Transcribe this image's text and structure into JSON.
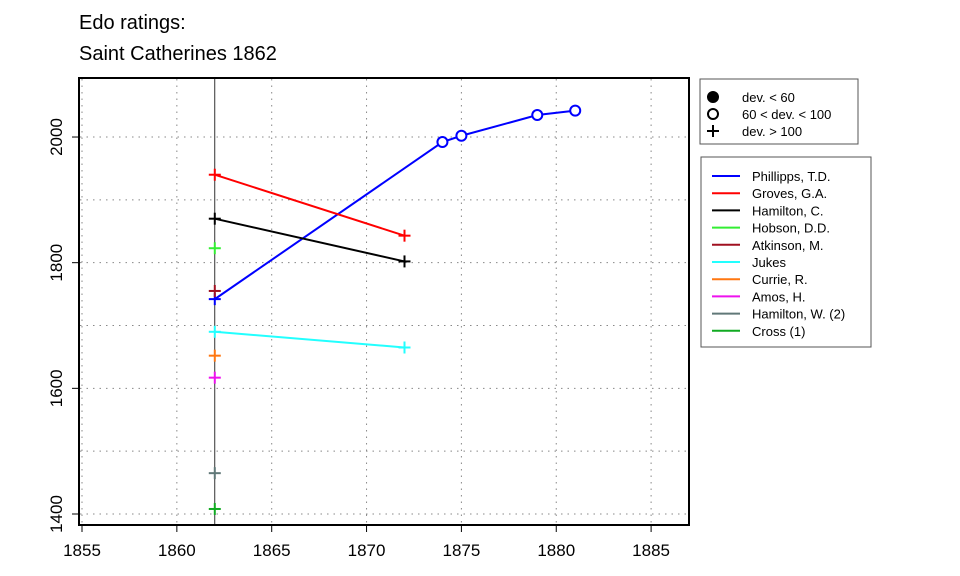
{
  "chart_data": {
    "type": "line",
    "title": [
      "Edo ratings:",
      "Saint Catherines 1862"
    ],
    "xlabel": "",
    "ylabel": "",
    "xlim": [
      1855,
      1887
    ],
    "ylim": [
      1390,
      2095
    ],
    "xticks": [
      1855,
      1860,
      1865,
      1870,
      1875,
      1880,
      1885
    ],
    "yticks": [
      1400,
      1600,
      1800,
      2000
    ],
    "grid": true,
    "reference_x": 1862,
    "marker_legend": [
      {
        "symbol": "filled-circle",
        "label": "dev. < 60"
      },
      {
        "symbol": "open-circle",
        "label": "60 < dev. < 100"
      },
      {
        "symbol": "plus",
        "label": "dev. > 100"
      }
    ],
    "series": [
      {
        "name": "Phillipps, T.D.",
        "color": "#0000ff",
        "points": [
          [
            1862,
            1742,
            "plus"
          ],
          [
            1874,
            1992,
            "open-circle"
          ],
          [
            1875,
            2002,
            "open-circle"
          ],
          [
            1879,
            2035,
            "open-circle"
          ],
          [
            1881,
            2042,
            "open-circle"
          ]
        ]
      },
      {
        "name": "Groves, G.A.",
        "color": "#ff0000",
        "points": [
          [
            1862,
            1940,
            "plus"
          ],
          [
            1872,
            1843,
            "plus"
          ]
        ]
      },
      {
        "name": "Hamilton, C.",
        "color": "#000000",
        "points": [
          [
            1862,
            1870,
            "plus"
          ],
          [
            1872,
            1802,
            "plus"
          ]
        ]
      },
      {
        "name": "Hobson, D.D.",
        "color": "#33ee33",
        "points": [
          [
            1862,
            1823,
            "plus"
          ]
        ]
      },
      {
        "name": "Atkinson, M.",
        "color": "#a01020",
        "points": [
          [
            1862,
            1755,
            "plus"
          ]
        ]
      },
      {
        "name": "Jukes",
        "color": "#22ffff",
        "points": [
          [
            1862,
            1690,
            "plus"
          ],
          [
            1872,
            1665,
            "plus"
          ]
        ]
      },
      {
        "name": "Currie, R.",
        "color": "#ff7711",
        "points": [
          [
            1862,
            1652,
            "plus"
          ]
        ]
      },
      {
        "name": "Amos, H.",
        "color": "#ee11ee",
        "points": [
          [
            1862,
            1617,
            "plus"
          ]
        ]
      },
      {
        "name": "Hamilton, W. (2)",
        "color": "#607878",
        "points": [
          [
            1862,
            1465,
            "plus"
          ]
        ]
      },
      {
        "name": "Cross (1)",
        "color": "#11aa22",
        "points": [
          [
            1862,
            1408,
            "plus"
          ]
        ]
      }
    ]
  }
}
